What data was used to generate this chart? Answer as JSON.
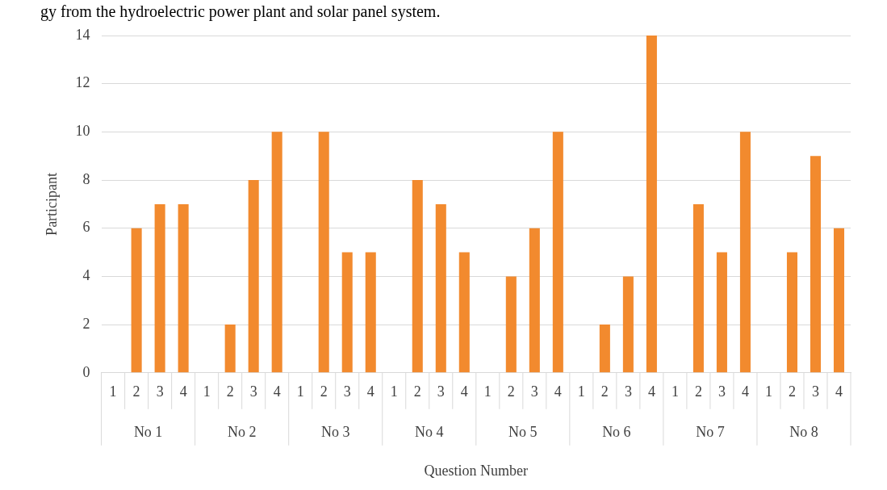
{
  "chart_data": {
    "type": "bar",
    "title": "gy from the hydroelectric power plant and solar panel system.",
    "xlabel": "Question Number",
    "ylabel": "Participant",
    "categories": [
      "1",
      "2",
      "3",
      "4",
      "1",
      "2",
      "3",
      "4",
      "1",
      "2",
      "3",
      "4",
      "1",
      "2",
      "3",
      "4",
      "1",
      "2",
      "3",
      "4",
      "1",
      "2",
      "3",
      "4",
      "1",
      "2",
      "3",
      "4",
      "1",
      "2",
      "3",
      "4"
    ],
    "values": [
      0,
      6,
      7,
      7,
      0,
      2,
      8,
      10,
      0,
      10,
      5,
      5,
      0,
      8,
      7,
      5,
      0,
      4,
      6,
      10,
      0,
      2,
      4,
      14,
      0,
      7,
      5,
      10,
      0,
      5,
      9,
      6
    ],
    "color": "#f28a2e",
    "ylim": [
      0,
      14
    ],
    "yticks": [
      0,
      2,
      4,
      6,
      8,
      10,
      12,
      14
    ],
    "grid": "y",
    "legend": false,
    "annotations": [
      "No 1",
      "No 2",
      "No 3",
      "No 4",
      "No 5",
      "No 6",
      "No 7",
      "No 8"
    ]
  }
}
